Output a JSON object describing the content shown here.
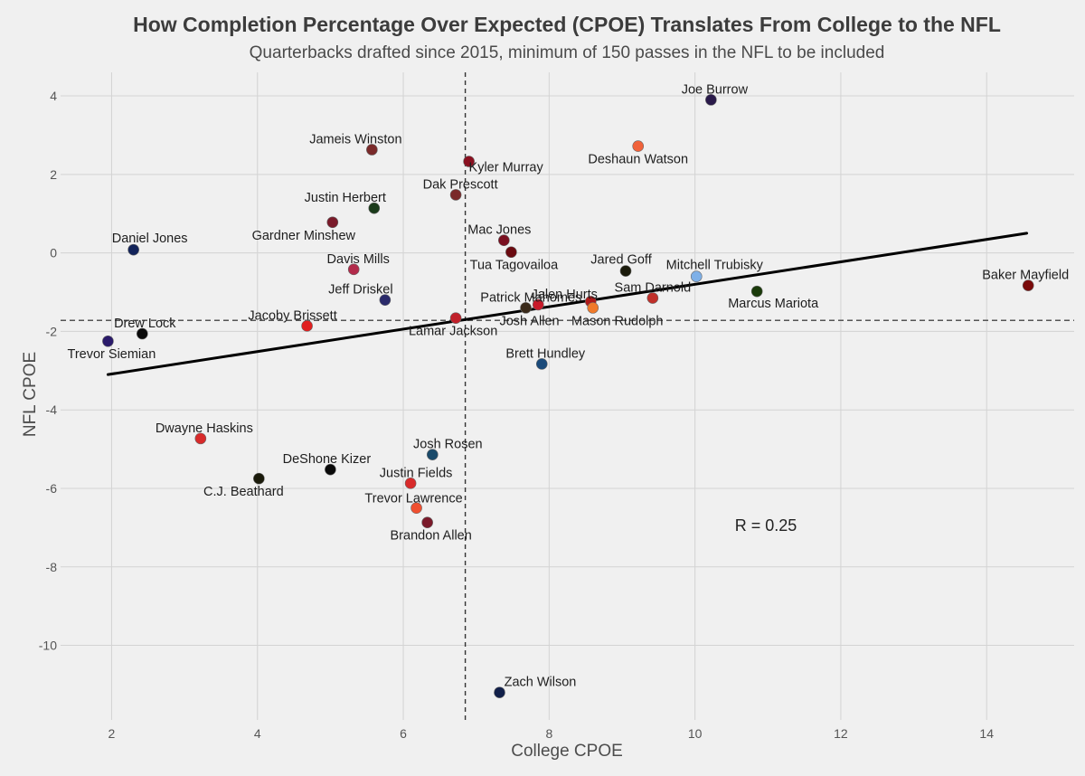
{
  "chart_data": {
    "type": "scatter",
    "title": "How Completion Percentage Over Expected (CPOE) Translates From College to the NFL",
    "subtitle": "Quarterbacks drafted since 2015, minimum of 150 passes in the NFL to be included",
    "xlabel": "College CPOE",
    "ylabel": "NFL CPOE",
    "xlim": [
      1.3,
      15.2
    ],
    "ylim": [
      -11.9,
      4.6
    ],
    "xticks": [
      2,
      4,
      6,
      8,
      10,
      12,
      14
    ],
    "yticks": [
      4,
      2,
      0,
      -2,
      -4,
      -6,
      -8,
      -10
    ],
    "grid": true,
    "reference_lines": {
      "x_mean": 6.85,
      "y_mean": -1.72
    },
    "trend_line": {
      "x": [
        1.95,
        14.55
      ],
      "y": [
        -3.1,
        0.5
      ]
    },
    "annotation": "R = 0.25",
    "points": [
      {
        "name": "Joe Burrow",
        "x": 10.22,
        "y": 3.9,
        "color": "#2a1a4a"
      },
      {
        "name": "Deshaun Watson",
        "x": 9.22,
        "y": 2.72,
        "color": "#f0623a"
      },
      {
        "name": "Jameis Winston",
        "x": 5.57,
        "y": 2.63,
        "color": "#7a2a2a"
      },
      {
        "name": "Kyler Murray",
        "x": 6.9,
        "y": 2.33,
        "color": "#8a1020"
      },
      {
        "name": "Dak Prescott",
        "x": 6.72,
        "y": 1.48,
        "color": "#7a2a2a"
      },
      {
        "name": "Justin Herbert",
        "x": 5.6,
        "y": 1.14,
        "color": "#1a3a1a"
      },
      {
        "name": "Gardner Minshew",
        "x": 5.03,
        "y": 0.78,
        "color": "#7a1a2a"
      },
      {
        "name": "Mac Jones",
        "x": 7.38,
        "y": 0.32,
        "color": "#7a1020"
      },
      {
        "name": "Tua Tagovailoa",
        "x": 7.48,
        "y": 0.02,
        "color": "#6a0a10"
      },
      {
        "name": "Daniel Jones",
        "x": 2.3,
        "y": 0.08,
        "color": "#12235a"
      },
      {
        "name": "Davis Mills",
        "x": 5.32,
        "y": -0.42,
        "color": "#b22a4a"
      },
      {
        "name": "Jared Goff",
        "x": 9.05,
        "y": -0.46,
        "color": "#1a1a0a"
      },
      {
        "name": "Mitchell Trubisky",
        "x": 10.02,
        "y": -0.6,
        "color": "#7eb0e8"
      },
      {
        "name": "Baker Mayfield",
        "x": 14.57,
        "y": -0.83,
        "color": "#7a0a0a"
      },
      {
        "name": "Marcus Mariota",
        "x": 10.85,
        "y": -0.98,
        "color": "#1a3a0a"
      },
      {
        "name": "Sam Darnold",
        "x": 9.42,
        "y": -1.15,
        "color": "#c0302a"
      },
      {
        "name": "Jeff Driskel",
        "x": 5.75,
        "y": -1.2,
        "color": "#2a2a6a"
      },
      {
        "name": "Patrick Mahomes",
        "x": 8.57,
        "y": -1.24,
        "color": "#b01a1a"
      },
      {
        "name": "Jalen Hurts",
        "x": 7.85,
        "y": -1.32,
        "color": "#c81a2a"
      },
      {
        "name": "Mason Rudolph",
        "x": 8.6,
        "y": -1.4,
        "color": "#f07a2a"
      },
      {
        "name": "Josh Allen",
        "x": 7.68,
        "y": -1.4,
        "color": "#3a2a1a"
      },
      {
        "name": "Lamar Jackson",
        "x": 6.72,
        "y": -1.66,
        "color": "#c0202a"
      },
      {
        "name": "Jacoby Brissett",
        "x": 4.68,
        "y": -1.86,
        "color": "#e02020"
      },
      {
        "name": "Drew Lock",
        "x": 2.42,
        "y": -2.06,
        "color": "#0a0a0a"
      },
      {
        "name": "Trevor Siemian",
        "x": 1.95,
        "y": -2.25,
        "color": "#2a1a6a"
      },
      {
        "name": "Brett Hundley",
        "x": 7.9,
        "y": -2.83,
        "color": "#1a4a7a"
      },
      {
        "name": "Dwayne Haskins",
        "x": 3.22,
        "y": -4.73,
        "color": "#d82a2a"
      },
      {
        "name": "Josh Rosen",
        "x": 6.4,
        "y": -5.14,
        "color": "#1a4a6a"
      },
      {
        "name": "DeShone Kizer",
        "x": 5.0,
        "y": -5.52,
        "color": "#0a0a0a"
      },
      {
        "name": "C.J. Beathard",
        "x": 4.02,
        "y": -5.75,
        "color": "#1a1a0a"
      },
      {
        "name": "Justin Fields",
        "x": 6.1,
        "y": -5.87,
        "color": "#d82a2a"
      },
      {
        "name": "Trevor Lawrence",
        "x": 6.18,
        "y": -6.5,
        "color": "#f05030"
      },
      {
        "name": "Brandon Allen",
        "x": 6.33,
        "y": -6.87,
        "color": "#7a1a2a"
      },
      {
        "name": "Zach Wilson",
        "x": 7.32,
        "y": -11.2,
        "color": "#12204a"
      }
    ]
  }
}
